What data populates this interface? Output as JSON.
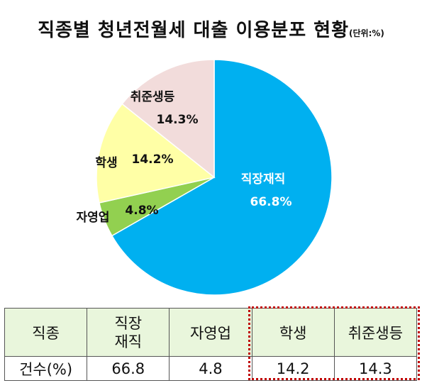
{
  "title": {
    "main": "직종별 청년전월세 대출 이용분포 현황",
    "unit": "(단위:%)"
  },
  "chart_data": {
    "type": "pie",
    "categories": [
      "직장재직",
      "자영업",
      "학생",
      "취준생등"
    ],
    "values": [
      66.8,
      4.8,
      14.2,
      14.3
    ],
    "value_labels": [
      "66.8%",
      "4.8%",
      "14.2%",
      "14.3%"
    ],
    "colors": [
      "#00b0f0",
      "#92d050",
      "#ffffa6",
      "#f2dcdb"
    ],
    "start_angle_deg": 0,
    "direction": "clockwise",
    "legend": "none"
  },
  "table": {
    "headers": [
      "직종",
      "직장\n재직",
      "자영업",
      "학생",
      "취준생등"
    ],
    "row_label": "건수(%)",
    "row_values": [
      "66.8",
      "4.8",
      "14.2",
      "14.3"
    ]
  }
}
